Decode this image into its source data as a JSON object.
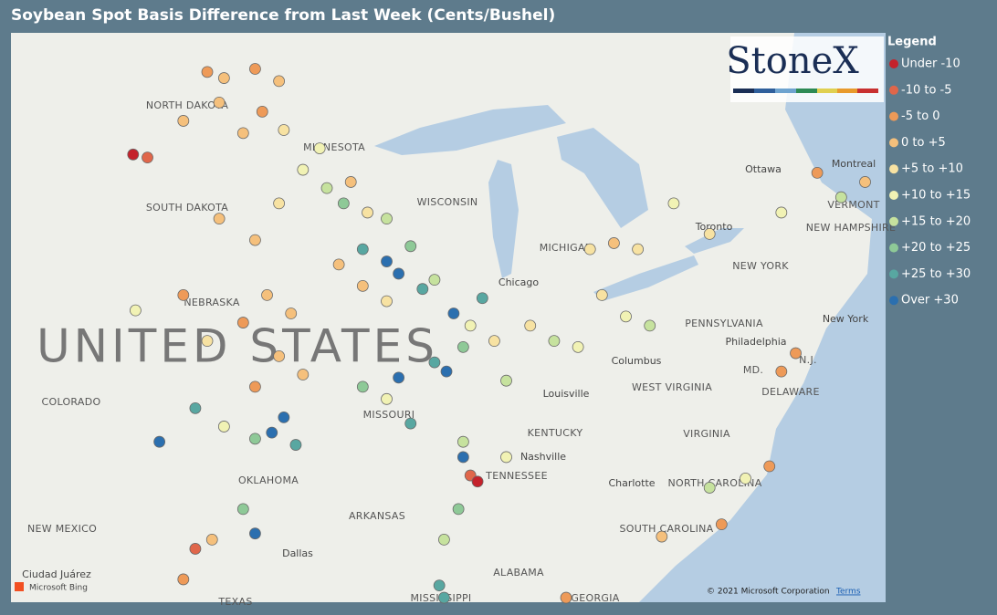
{
  "title": "Soybean Spot Basis Difference from Last Week (Cents/Bushel)",
  "legend": {
    "title": "Legend",
    "items": [
      {
        "label": "Under -10",
        "color": "#c4222b"
      },
      {
        "label": "-10 to -5",
        "color": "#e0664a"
      },
      {
        "label": "-5 to 0",
        "color": "#ee9a58"
      },
      {
        "label": "0 to +5",
        "color": "#f5c07c"
      },
      {
        "label": "+5 to +10",
        "color": "#f7e2a2"
      },
      {
        "label": "+10 to +15",
        "color": "#f1f2b4"
      },
      {
        "label": "+15 to +20",
        "color": "#c6e29e"
      },
      {
        "label": "+20 to +25",
        "color": "#8ec997"
      },
      {
        "label": "+25 to +30",
        "color": "#58a7a1"
      },
      {
        "label": "Over +30",
        "color": "#2b6faf"
      }
    ]
  },
  "logo": "StoneX",
  "map_labels": [
    "NORTH DAKOTA",
    "MINNESOTA",
    "SOUTH DAKOTA",
    "WISCONSIN",
    "NEBRASKA",
    "UNITED STATES",
    "COLORADO",
    "MISSOURI",
    "KENTUCKY",
    "OKLAHOMA",
    "TENNESSEE",
    "ARKANSAS",
    "NEW MEXICO",
    "Dallas",
    "ALABAMA",
    "MISSISSIPPI",
    "GEORGIA",
    "TEXAS",
    "Ciudad Juárez",
    "Chicago",
    "Louisville",
    "Nashville",
    "Charlotte",
    "VIRGINIA",
    "WEST VIRGINIA",
    "PENNSYLVANIA",
    "Philadelphia",
    "NEW YORK",
    "New York",
    "Columbus",
    "Toronto",
    "Ottawa",
    "Montreal",
    "VERMONT",
    "NEW HAMPSHIRE",
    "MD.",
    "N.J.",
    "DELAWARE",
    "NORTH CAROLINA",
    "SOUTH CAROLINA",
    "MICHIGAN"
  ],
  "attribution": {
    "bing": "Microsoft Bing",
    "copyright": "© 2021 Microsoft Corporation",
    "terms": "Terms"
  },
  "points": [
    [
      -100.5,
      48.8,
      2
    ],
    [
      -99.8,
      48.6,
      3
    ],
    [
      -98.5,
      48.9,
      2
    ],
    [
      -97.5,
      48.5,
      3
    ],
    [
      -100,
      47.8,
      3
    ],
    [
      -98.2,
      47.5,
      2
    ],
    [
      -101.5,
      47.2,
      3
    ],
    [
      -99,
      46.8,
      3
    ],
    [
      -97.3,
      46.9,
      4
    ],
    [
      -96.5,
      45.6,
      5
    ],
    [
      -95.5,
      45,
      6
    ],
    [
      -94.8,
      44.5,
      7
    ],
    [
      -93.8,
      44.2,
      4
    ],
    [
      -95.8,
      46.3,
      5
    ],
    [
      -94.5,
      45.2,
      3
    ],
    [
      -93,
      44,
      6
    ],
    [
      -94,
      43,
      8
    ],
    [
      -93,
      42.6,
      9
    ],
    [
      -92.5,
      42.2,
      9
    ],
    [
      -91.5,
      41.7,
      8
    ],
    [
      -95,
      42.5,
      3
    ],
    [
      -94,
      41.8,
      3
    ],
    [
      -93,
      41.3,
      4
    ],
    [
      -92,
      43.1,
      7
    ],
    [
      -91,
      42,
      6
    ],
    [
      -98,
      41.5,
      3
    ],
    [
      -97,
      40.9,
      3
    ],
    [
      -99,
      40.6,
      2
    ],
    [
      -100.5,
      40,
      4
    ],
    [
      -97.5,
      39.5,
      3
    ],
    [
      -98.5,
      38.5,
      2
    ],
    [
      -96.5,
      38.9,
      3
    ],
    [
      -97.3,
      37.5,
      9
    ],
    [
      -97.8,
      37,
      9
    ],
    [
      -96.8,
      36.6,
      8
    ],
    [
      -98.5,
      36.8,
      7
    ],
    [
      -99.8,
      37.2,
      5
    ],
    [
      -101,
      37.8,
      8
    ],
    [
      -102.5,
      36.7,
      9
    ],
    [
      -101.5,
      41.5,
      2
    ],
    [
      -103.5,
      41,
      5
    ],
    [
      -100,
      44,
      3
    ],
    [
      -97.5,
      44.5,
      4
    ],
    [
      -98.5,
      43.3,
      3
    ],
    [
      -103.6,
      46.1,
      0
    ],
    [
      -103,
      46,
      1
    ],
    [
      -89.5,
      40.5,
      5
    ],
    [
      -88.5,
      40,
      4
    ],
    [
      -89.8,
      39.8,
      7
    ],
    [
      -90.5,
      39,
      9
    ],
    [
      -87,
      40.5,
      4
    ],
    [
      -86,
      40,
      6
    ],
    [
      -85,
      39.8,
      5
    ],
    [
      -88,
      38.7,
      6
    ],
    [
      -90.2,
      40.9,
      9
    ],
    [
      -89,
      41.4,
      8
    ],
    [
      -84,
      41.5,
      4
    ],
    [
      -83,
      40.8,
      5
    ],
    [
      -82,
      40.5,
      6
    ],
    [
      -84.5,
      43,
      4
    ],
    [
      -83.5,
      43.2,
      3
    ],
    [
      -82.5,
      43,
      4
    ],
    [
      -81,
      44.5,
      5
    ],
    [
      -79.5,
      43.5,
      4
    ],
    [
      -94,
      38.5,
      7
    ],
    [
      -92.5,
      38.8,
      9
    ],
    [
      -91,
      39.3,
      8
    ],
    [
      -92,
      37.3,
      8
    ],
    [
      -93,
      38.1,
      5
    ],
    [
      -89.8,
      36.2,
      9
    ],
    [
      -89.5,
      35.6,
      1
    ],
    [
      -89.2,
      35.4,
      0
    ],
    [
      -90,
      34.5,
      7
    ],
    [
      -90.6,
      33.5,
      6
    ],
    [
      -90.8,
      32,
      8
    ],
    [
      -90.6,
      31.6,
      8
    ],
    [
      -89.8,
      36.7,
      6
    ],
    [
      -88,
      36.2,
      5
    ],
    [
      -78,
      35.5,
      5
    ],
    [
      -79.5,
      35.2,
      6
    ],
    [
      -79,
      34,
      2
    ],
    [
      -81.5,
      33.6,
      3
    ],
    [
      -85.5,
      31.6,
      2
    ],
    [
      -77,
      35.9,
      2
    ],
    [
      -76.5,
      39,
      2
    ],
    [
      -75.9,
      39.6,
      2
    ],
    [
      -75,
      45.5,
      2
    ],
    [
      -73,
      45.2,
      3
    ],
    [
      -76.5,
      44.2,
      5
    ],
    [
      -74,
      44.7,
      6
    ],
    [
      -98.5,
      33.7,
      9
    ],
    [
      -99,
      34.5,
      7
    ],
    [
      -100.3,
      33.5,
      3
    ],
    [
      -101.5,
      32.2,
      2
    ],
    [
      -101,
      33.2,
      1
    ]
  ]
}
